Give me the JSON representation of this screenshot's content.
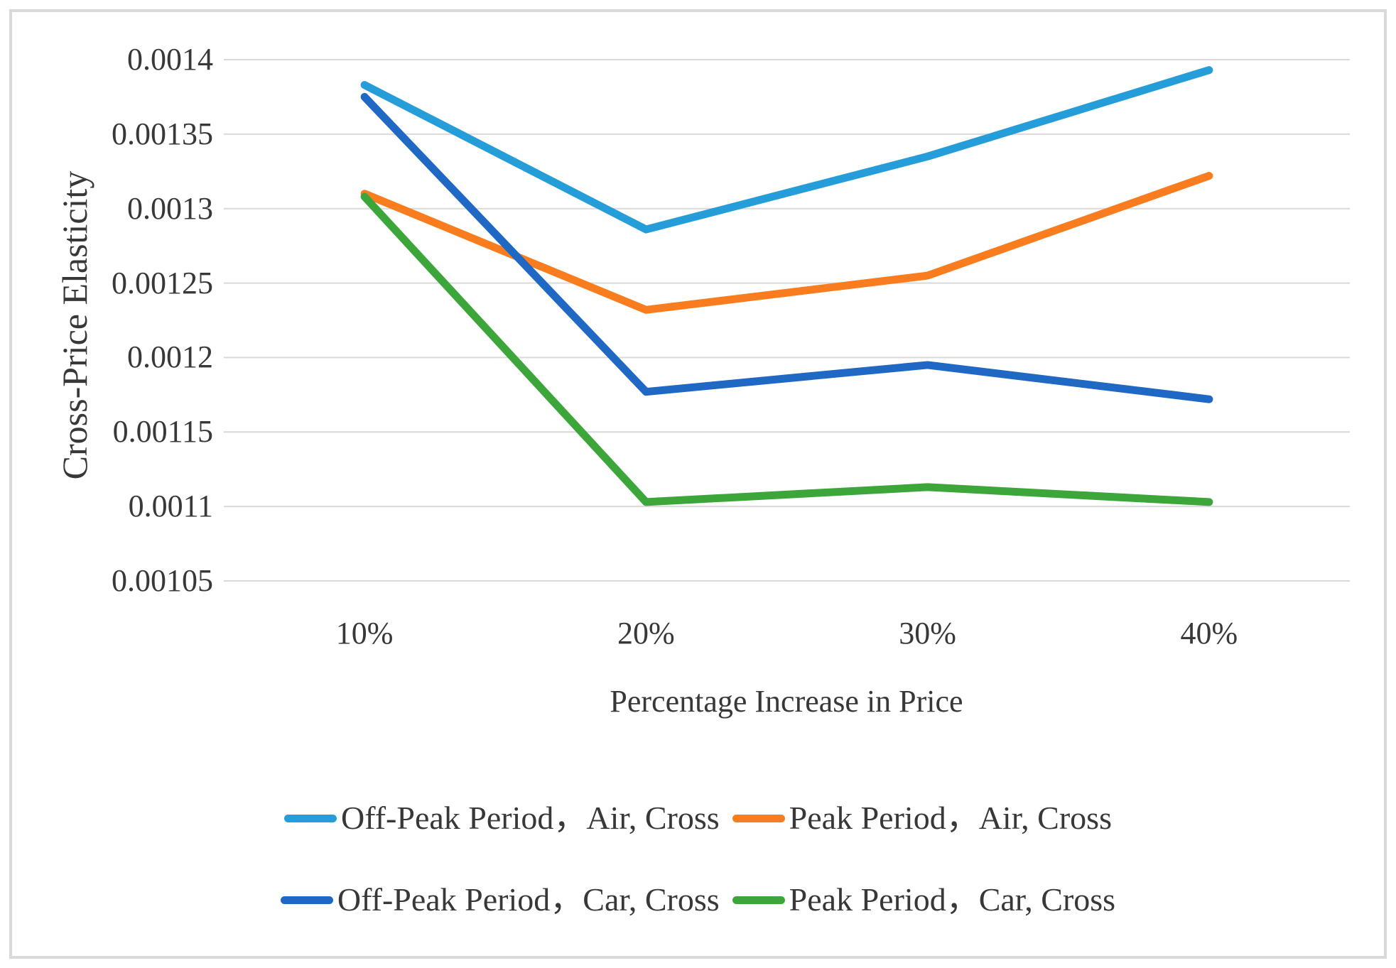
{
  "figure": {
    "background": "#ffffff",
    "frame_color": "#d9d9d9"
  },
  "chart_data": {
    "type": "line",
    "title": "",
    "xlabel": "Percentage Increase in Price",
    "ylabel": "Cross-Price Elasticity",
    "categories": [
      "10%",
      "20%",
      "30%",
      "40%"
    ],
    "series": [
      {
        "name": "Off-Peak Period，Air, Cross",
        "color": "#249dd9",
        "values": [
          0.001383,
          0.001286,
          0.001335,
          0.001393
        ]
      },
      {
        "name": "Peak Period，Air, Cross",
        "color": "#f97d1e",
        "values": [
          0.00131,
          0.001232,
          0.001255,
          0.001322
        ]
      },
      {
        "name": "Off-Peak Period，Car, Cross",
        "color": "#1f68c4",
        "values": [
          0.001375,
          0.001177,
          0.001195,
          0.001172
        ]
      },
      {
        "name": "Peak Period，Car, Cross",
        "color": "#3da63a",
        "values": [
          0.001308,
          0.001103,
          0.001113,
          0.001103
        ]
      }
    ],
    "ylim": [
      0.00105,
      0.0014
    ],
    "ytick_step": 5e-05,
    "ytick_labels": [
      "0.0014",
      "0.00135",
      "0.0013",
      "0.00125",
      "0.0012",
      "0.00115",
      "0.0011",
      "0.00105"
    ],
    "grid": "horizontal",
    "gridline_color": "#d9d9d9",
    "legend_position": "bottom",
    "legend_layout": [
      [
        0,
        1
      ],
      [
        2,
        3
      ]
    ]
  }
}
